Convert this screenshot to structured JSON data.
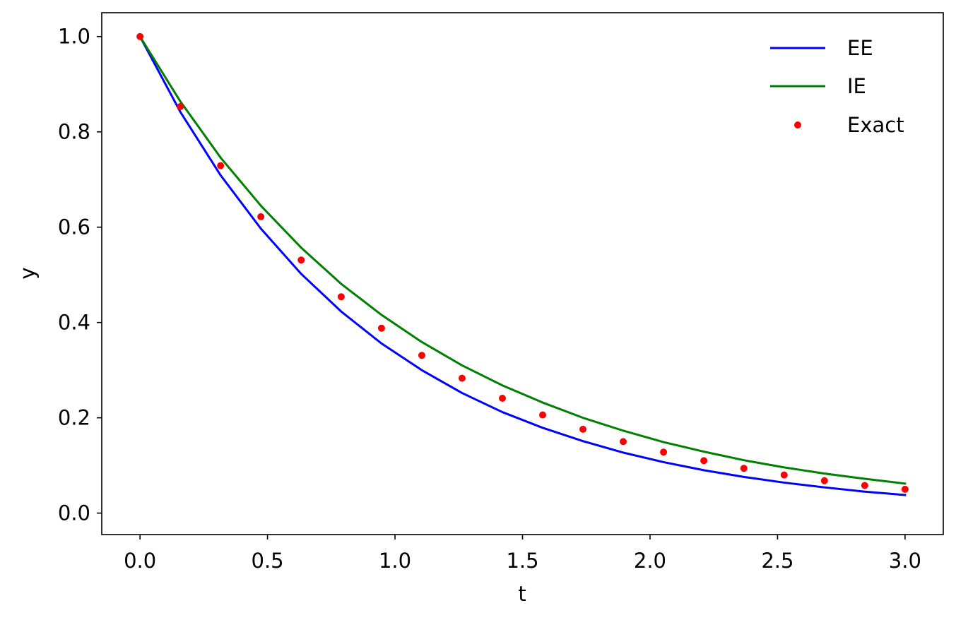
{
  "chart_data": {
    "type": "line",
    "title": "",
    "xlabel": "t",
    "ylabel": "y",
    "xlim": [
      -0.15,
      3.15
    ],
    "ylim": [
      -0.045,
      1.05
    ],
    "xticks": [
      0.0,
      0.5,
      1.0,
      1.5,
      2.0,
      2.5,
      3.0
    ],
    "xtick_labels": [
      "0.0",
      "0.5",
      "1.0",
      "1.5",
      "2.0",
      "2.5",
      "3.0"
    ],
    "yticks": [
      0.0,
      0.2,
      0.4,
      0.6,
      0.8,
      1.0
    ],
    "ytick_labels": [
      "0.0",
      "0.2",
      "0.4",
      "0.6",
      "0.8",
      "1.0"
    ],
    "grid": false,
    "legend_position": "top-right",
    "x": [
      0.0,
      0.158,
      0.316,
      0.474,
      0.632,
      0.789,
      0.947,
      1.105,
      1.263,
      1.421,
      1.579,
      1.737,
      1.895,
      2.053,
      2.211,
      2.368,
      2.526,
      2.684,
      2.842,
      3.0
    ],
    "series": [
      {
        "name": "EE",
        "style": "line",
        "color": "#0000ff",
        "values": [
          1.0,
          0.842,
          0.709,
          0.597,
          0.502,
          0.423,
          0.356,
          0.3,
          0.252,
          0.212,
          0.179,
          0.151,
          0.127,
          0.107,
          0.09,
          0.076,
          0.064,
          0.054,
          0.045,
          0.038
        ]
      },
      {
        "name": "IE",
        "style": "line",
        "color": "#008000",
        "values": [
          1.0,
          0.864,
          0.746,
          0.645,
          0.557,
          0.481,
          0.416,
          0.359,
          0.31,
          0.268,
          0.232,
          0.2,
          0.173,
          0.149,
          0.129,
          0.111,
          0.096,
          0.083,
          0.072,
          0.062
        ]
      },
      {
        "name": "Exact",
        "style": "markers",
        "color": "#ff0000",
        "values": [
          1.0,
          0.853,
          0.729,
          0.622,
          0.531,
          0.454,
          0.388,
          0.331,
          0.283,
          0.241,
          0.206,
          0.176,
          0.15,
          0.128,
          0.11,
          0.094,
          0.08,
          0.068,
          0.058,
          0.05
        ]
      }
    ]
  }
}
